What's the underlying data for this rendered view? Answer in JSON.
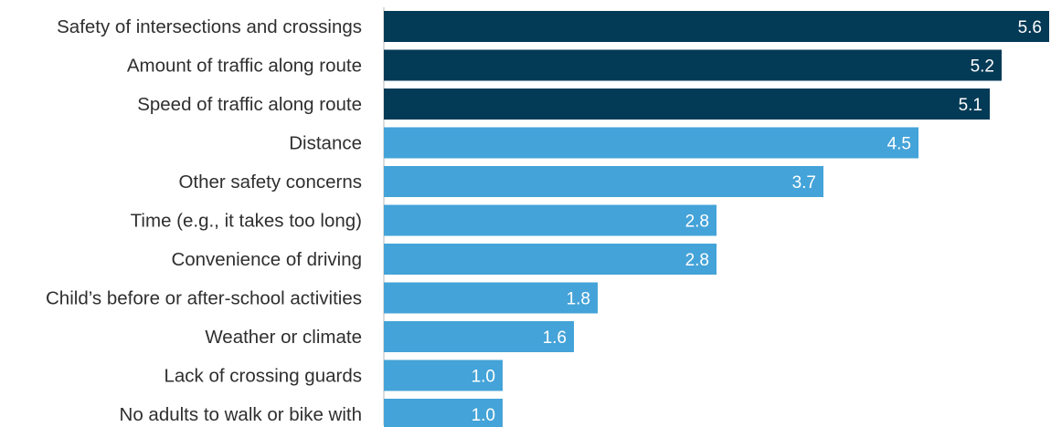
{
  "chart_data": {
    "type": "bar",
    "orientation": "horizontal",
    "title": "",
    "xlabel": "",
    "ylabel": "",
    "xlim": [
      0,
      5.6
    ],
    "grid": false,
    "legend": "none",
    "categories": [
      "Safety of intersections and crossings",
      "Amount of traffic along route",
      "Speed of traffic along route",
      "Distance",
      "Other safety concerns",
      "Time (e.g., it takes too long)",
      "Convenience of driving",
      "Child’s before or after-school activities",
      "Weather or climate",
      "Lack of crossing guards",
      "No adults to walk or bike with"
    ],
    "values": [
      5.6,
      5.2,
      5.1,
      4.5,
      3.7,
      2.8,
      2.8,
      1.8,
      1.6,
      1.0,
      1.0
    ],
    "value_labels": [
      "5.6",
      "5.2",
      "5.1",
      "4.5",
      "3.7",
      "2.8",
      "2.8",
      "1.8",
      "1.6",
      "1.0",
      "1.0"
    ],
    "highlighted_count": 3,
    "colors": {
      "highlight": "#033a56",
      "default": "#44a3d8",
      "axis": "#d0d0d0",
      "value_text": "#ffffff",
      "category_text": "#2f2f2f"
    }
  }
}
